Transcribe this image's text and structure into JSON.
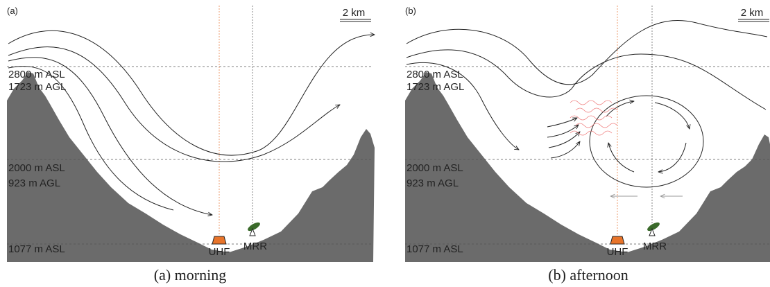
{
  "panels": [
    {
      "tag": "(a)",
      "scale": "2 km",
      "levels": [
        "2800 m ASL",
        "1723 m AGL",
        "2000 m ASL",
        "923 m AGL",
        "1077 m ASL"
      ],
      "instruments": [
        "UHF",
        "MRR"
      ],
      "caption": "(a) morning"
    },
    {
      "tag": "(b)",
      "scale": "2 km",
      "levels": [
        "2800 m ASL",
        "1723 m AGL",
        "2000 m ASL",
        "923 m AGL",
        "1077 m ASL"
      ],
      "instruments": [
        "UHF",
        "MRR"
      ],
      "caption": "(b) afternoon"
    }
  ]
}
